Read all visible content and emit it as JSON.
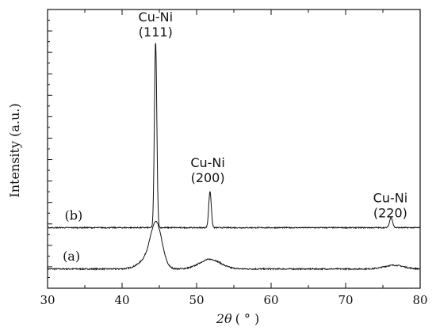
{
  "chart_data": {
    "type": "line",
    "title": "",
    "xlabel_italic": "2θ",
    "xlabel_unit": "( ° )",
    "ylabel": "Intensity  (a.u.)",
    "xlim": [
      30,
      80
    ],
    "xticks": [
      30,
      40,
      50,
      60,
      70,
      80
    ],
    "yticks_labeled": false,
    "grid": false,
    "legend": "none",
    "series": [
      {
        "name": "(a)",
        "baseline": 0.18,
        "noise": 0.006,
        "peaks": [
          {
            "x": 44.6,
            "height": 0.38,
            "width": 0.75,
            "shoulder": {
              "x": 43.5,
              "height": 0.09,
              "width": 1.2
            }
          },
          {
            "x": 51.8,
            "height": 0.09,
            "width": 1.4
          },
          {
            "x": 76.5,
            "height": 0.035,
            "width": 1.3
          }
        ]
      },
      {
        "name": "(b)",
        "baseline": 0.565,
        "noise": 0.005,
        "peaks": [
          {
            "x": 44.5,
            "height": 1.74,
            "width": 0.16
          },
          {
            "x": 51.8,
            "height": 0.34,
            "width": 0.17
          },
          {
            "x": 76.1,
            "height": 0.095,
            "width": 0.2
          }
        ]
      }
    ],
    "ylim": [
      0,
      2.6
    ],
    "annotations": [
      {
        "line1": "Cu-Ni",
        "line2": "(111)",
        "x": 44.5,
        "y": 2.49
      },
      {
        "line1": "Cu-Ni",
        "line2": "(200)",
        "x": 51.5,
        "y": 1.13
      },
      {
        "line1": "Cu-Ni",
        "line2": "(220)",
        "x": 76.0,
        "y": 0.8
      }
    ],
    "curve_labels": [
      {
        "text": "(a)",
        "x": 33.2,
        "y": 0.26
      },
      {
        "text": "(b)",
        "x": 33.5,
        "y": 0.64
      }
    ]
  }
}
